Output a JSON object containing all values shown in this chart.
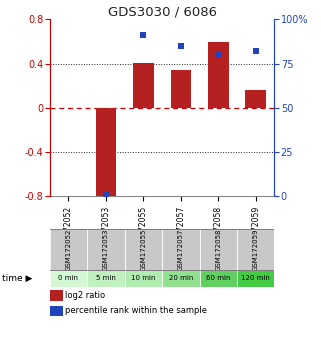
{
  "title": "GDS3030 / 6086",
  "samples": [
    "GSM172052",
    "GSM172053",
    "GSM172055",
    "GSM172057",
    "GSM172058",
    "GSM172059"
  ],
  "time_labels": [
    "0 min",
    "5 min",
    "10 min",
    "20 min",
    "60 min",
    "120 min"
  ],
  "log2_ratio": [
    0.0,
    -0.82,
    0.41,
    0.34,
    0.6,
    0.16
  ],
  "percentile_rank": [
    null,
    1.0,
    91.0,
    85.0,
    80.0,
    82.0
  ],
  "ylim_left": [
    -0.8,
    0.8
  ],
  "ylim_right": [
    0,
    100
  ],
  "yticks_left": [
    -0.8,
    -0.4,
    0,
    0.4,
    0.8
  ],
  "yticks_right": [
    0,
    25,
    50,
    75,
    100
  ],
  "bar_color": "#b52020",
  "dot_color": "#2244bb",
  "zero_line_color": "#cc0000",
  "grid_color": "#222222",
  "title_color": "#222222",
  "left_axis_color": "#cc0000",
  "right_axis_color": "#2244bb",
  "cell_bg_gray": "#c8c8c8",
  "cell_bg_green_0": "#d4f7d4",
  "cell_bg_green_1": "#c0f0c0",
  "cell_bg_green_2": "#b0ecb0",
  "cell_bg_green_3": "#90e090",
  "cell_bg_green_4": "#60d060",
  "cell_bg_green_5": "#44cc44",
  "legend_red_label": "log2 ratio",
  "legend_blue_label": "percentile rank within the sample"
}
